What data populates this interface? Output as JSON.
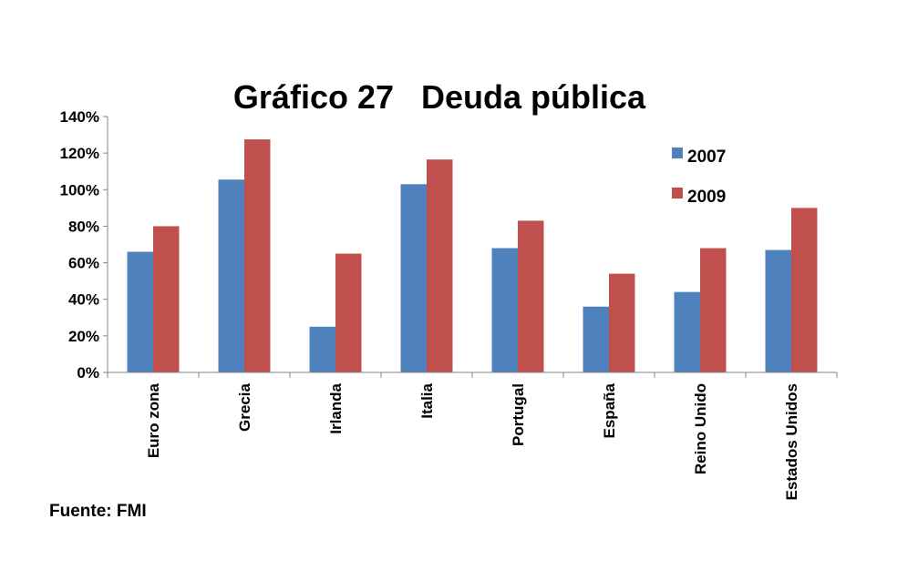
{
  "chart_data": {
    "type": "bar",
    "title": "Gráfico 27   Deuda pública",
    "categories": [
      "Euro zona",
      "Grecia",
      "Irlanda",
      "Italia",
      "Portugal",
      "España",
      "Reino Unido",
      "Estados Unidos"
    ],
    "series": [
      {
        "name": "2007",
        "color": "#4F81BD",
        "values": [
          66,
          105.5,
          25,
          103,
          68,
          36,
          44,
          67
        ]
      },
      {
        "name": "2009",
        "color": "#C0504D",
        "values": [
          80,
          127.5,
          65,
          116.5,
          83,
          54,
          68,
          90
        ]
      }
    ],
    "yticks": [
      "0%",
      "20%",
      "40%",
      "60%",
      "80%",
      "100%",
      "120%",
      "140%"
    ],
    "ylim": [
      0,
      140
    ],
    "xlabel": "",
    "ylabel": "",
    "grid": false,
    "legend": "top-right",
    "source": "Fuente: FMI"
  }
}
